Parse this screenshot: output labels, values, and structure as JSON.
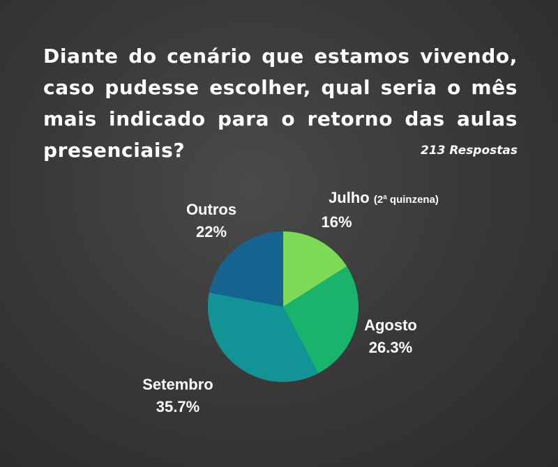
{
  "question": "Diante do cenário que estamos vivendo, caso pudesse escolher, qual seria o mês mais indicado para o retorno das aulas presenciais?",
  "responses": "213 Respostas",
  "chart_data": {
    "type": "pie",
    "slices": [
      {
        "label": "Julho",
        "sublabel": "(2ª quinzena)",
        "value": 16,
        "value_label": "16%",
        "color": "#7ed957"
      },
      {
        "label": "Agosto",
        "value": 26.3,
        "value_label": "26.3%",
        "color": "#19b36b"
      },
      {
        "label": "Setembro",
        "value": 35.7,
        "value_label": "35.7%",
        "color": "#129497"
      },
      {
        "label": "Outros",
        "value": 22,
        "value_label": "22%",
        "color": "#16638f"
      }
    ],
    "start": "top",
    "direction": "clockwise"
  }
}
